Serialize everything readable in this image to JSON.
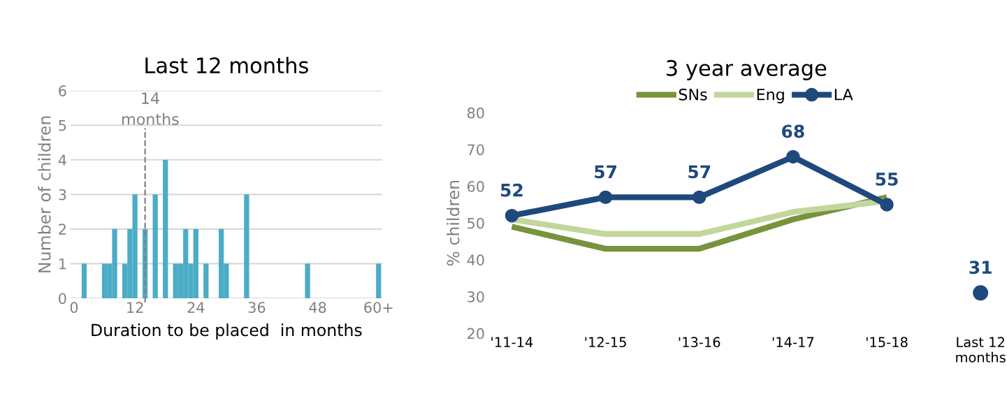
{
  "chart_data": [
    {
      "type": "histogram",
      "title": "Last 12 months",
      "xlabel": "Duration to be placed  in months",
      "ylabel": "Number of children",
      "color": "#4bacc6",
      "bins": [
        1.5,
        2.5,
        3.5,
        4.5,
        5.5,
        6.5,
        7.5,
        8.5,
        9.5,
        10.5,
        11.5,
        12.5,
        13.5,
        14.5,
        15.5,
        16.5,
        17.5,
        18.5,
        19.5,
        20.5,
        21.5,
        22.5,
        23.5,
        24.5,
        25.5,
        26.5,
        27.5,
        28.5,
        29.5,
        30.5,
        31.5,
        32.5,
        33.5,
        34.5,
        35.5,
        36.5,
        37.5,
        38.5,
        39.5,
        40.5,
        41.5,
        42.5,
        43.5,
        44.5,
        45.5,
        46.5,
        47.5,
        48.5,
        49.5,
        50.5,
        51.5,
        52.5,
        53.5,
        54.5,
        55.5,
        56.5,
        57.5,
        58.5,
        59.5,
        60.5
      ],
      "values": [
        1,
        0,
        0,
        0,
        1,
        1,
        2,
        0,
        1,
        2,
        3,
        0,
        2,
        0,
        3,
        0,
        4,
        0,
        1,
        1,
        2,
        1,
        2,
        0,
        1,
        0,
        0,
        2,
        1,
        0,
        0,
        0,
        3,
        0,
        0,
        0,
        0,
        0,
        0,
        0,
        0,
        0,
        0,
        0,
        1,
        0,
        0,
        0,
        0,
        0,
        0,
        0,
        0,
        0,
        0,
        0,
        0,
        0,
        1
      ],
      "xlim": [
        -0.7,
        60.7
      ],
      "xticks": [
        0,
        12,
        24,
        36,
        48,
        {
          "value": 60,
          "label": "60+"
        }
      ],
      "ylim": [
        0,
        6
      ],
      "yticks": [
        0,
        1,
        2,
        3,
        4,
        5,
        6
      ],
      "grid": "y",
      "ref_lines": [
        {
          "axis": "x",
          "value": 14,
          "label": "14\nmonths",
          "color": "#808080",
          "line_style": "dashed"
        }
      ]
    },
    {
      "type": "line",
      "title": "3 year average",
      "ylabel": "% children",
      "categories": [
        "'11-14",
        "'12-15",
        "'13-16",
        "'14-17",
        "'15-18",
        "Last 12\nmonths"
      ],
      "series": [
        {
          "name": "SNs",
          "color": "#77933c",
          "values": [
            49,
            43,
            43,
            51,
            57,
            null
          ]
        },
        {
          "name": "Eng",
          "color": "#c3d69b",
          "values": [
            51,
            47,
            47,
            53,
            56,
            null
          ]
        },
        {
          "name": "LA",
          "color": "#1f497d",
          "values": [
            52,
            57,
            57,
            68,
            55,
            null
          ],
          "marker": "circle",
          "value_labels": [
            "52",
            "57",
            "57",
            "68",
            "55",
            null
          ]
        },
        {
          "type": "scatter",
          "color": "#1f497d",
          "values": [
            null,
            null,
            null,
            null,
            null,
            31
          ],
          "marker": "circle",
          "value_labels": [
            null,
            null,
            null,
            null,
            null,
            "31"
          ]
        }
      ],
      "ylim": [
        20,
        80
      ],
      "yticks": [
        20,
        30,
        40,
        50,
        60,
        70,
        80
      ],
      "grid": false,
      "legend": "top"
    }
  ]
}
